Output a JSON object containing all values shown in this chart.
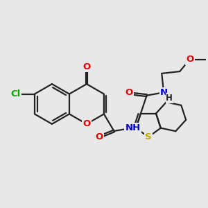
{
  "bg_color": "#e8e8e8",
  "bond_color": "#222222",
  "bond_width": 1.6,
  "atom_colors": {
    "O": "#dd0000",
    "N": "#0000cc",
    "S": "#bbaa00",
    "Cl": "#00aa00",
    "C": "#222222",
    "H": "#222222"
  },
  "font_size": 9.5,
  "fig_size": [
    3.0,
    3.0
  ],
  "dpi": 100,
  "xlim": [
    0.0,
    10.2
  ],
  "ylim": [
    0.5,
    8.5
  ]
}
